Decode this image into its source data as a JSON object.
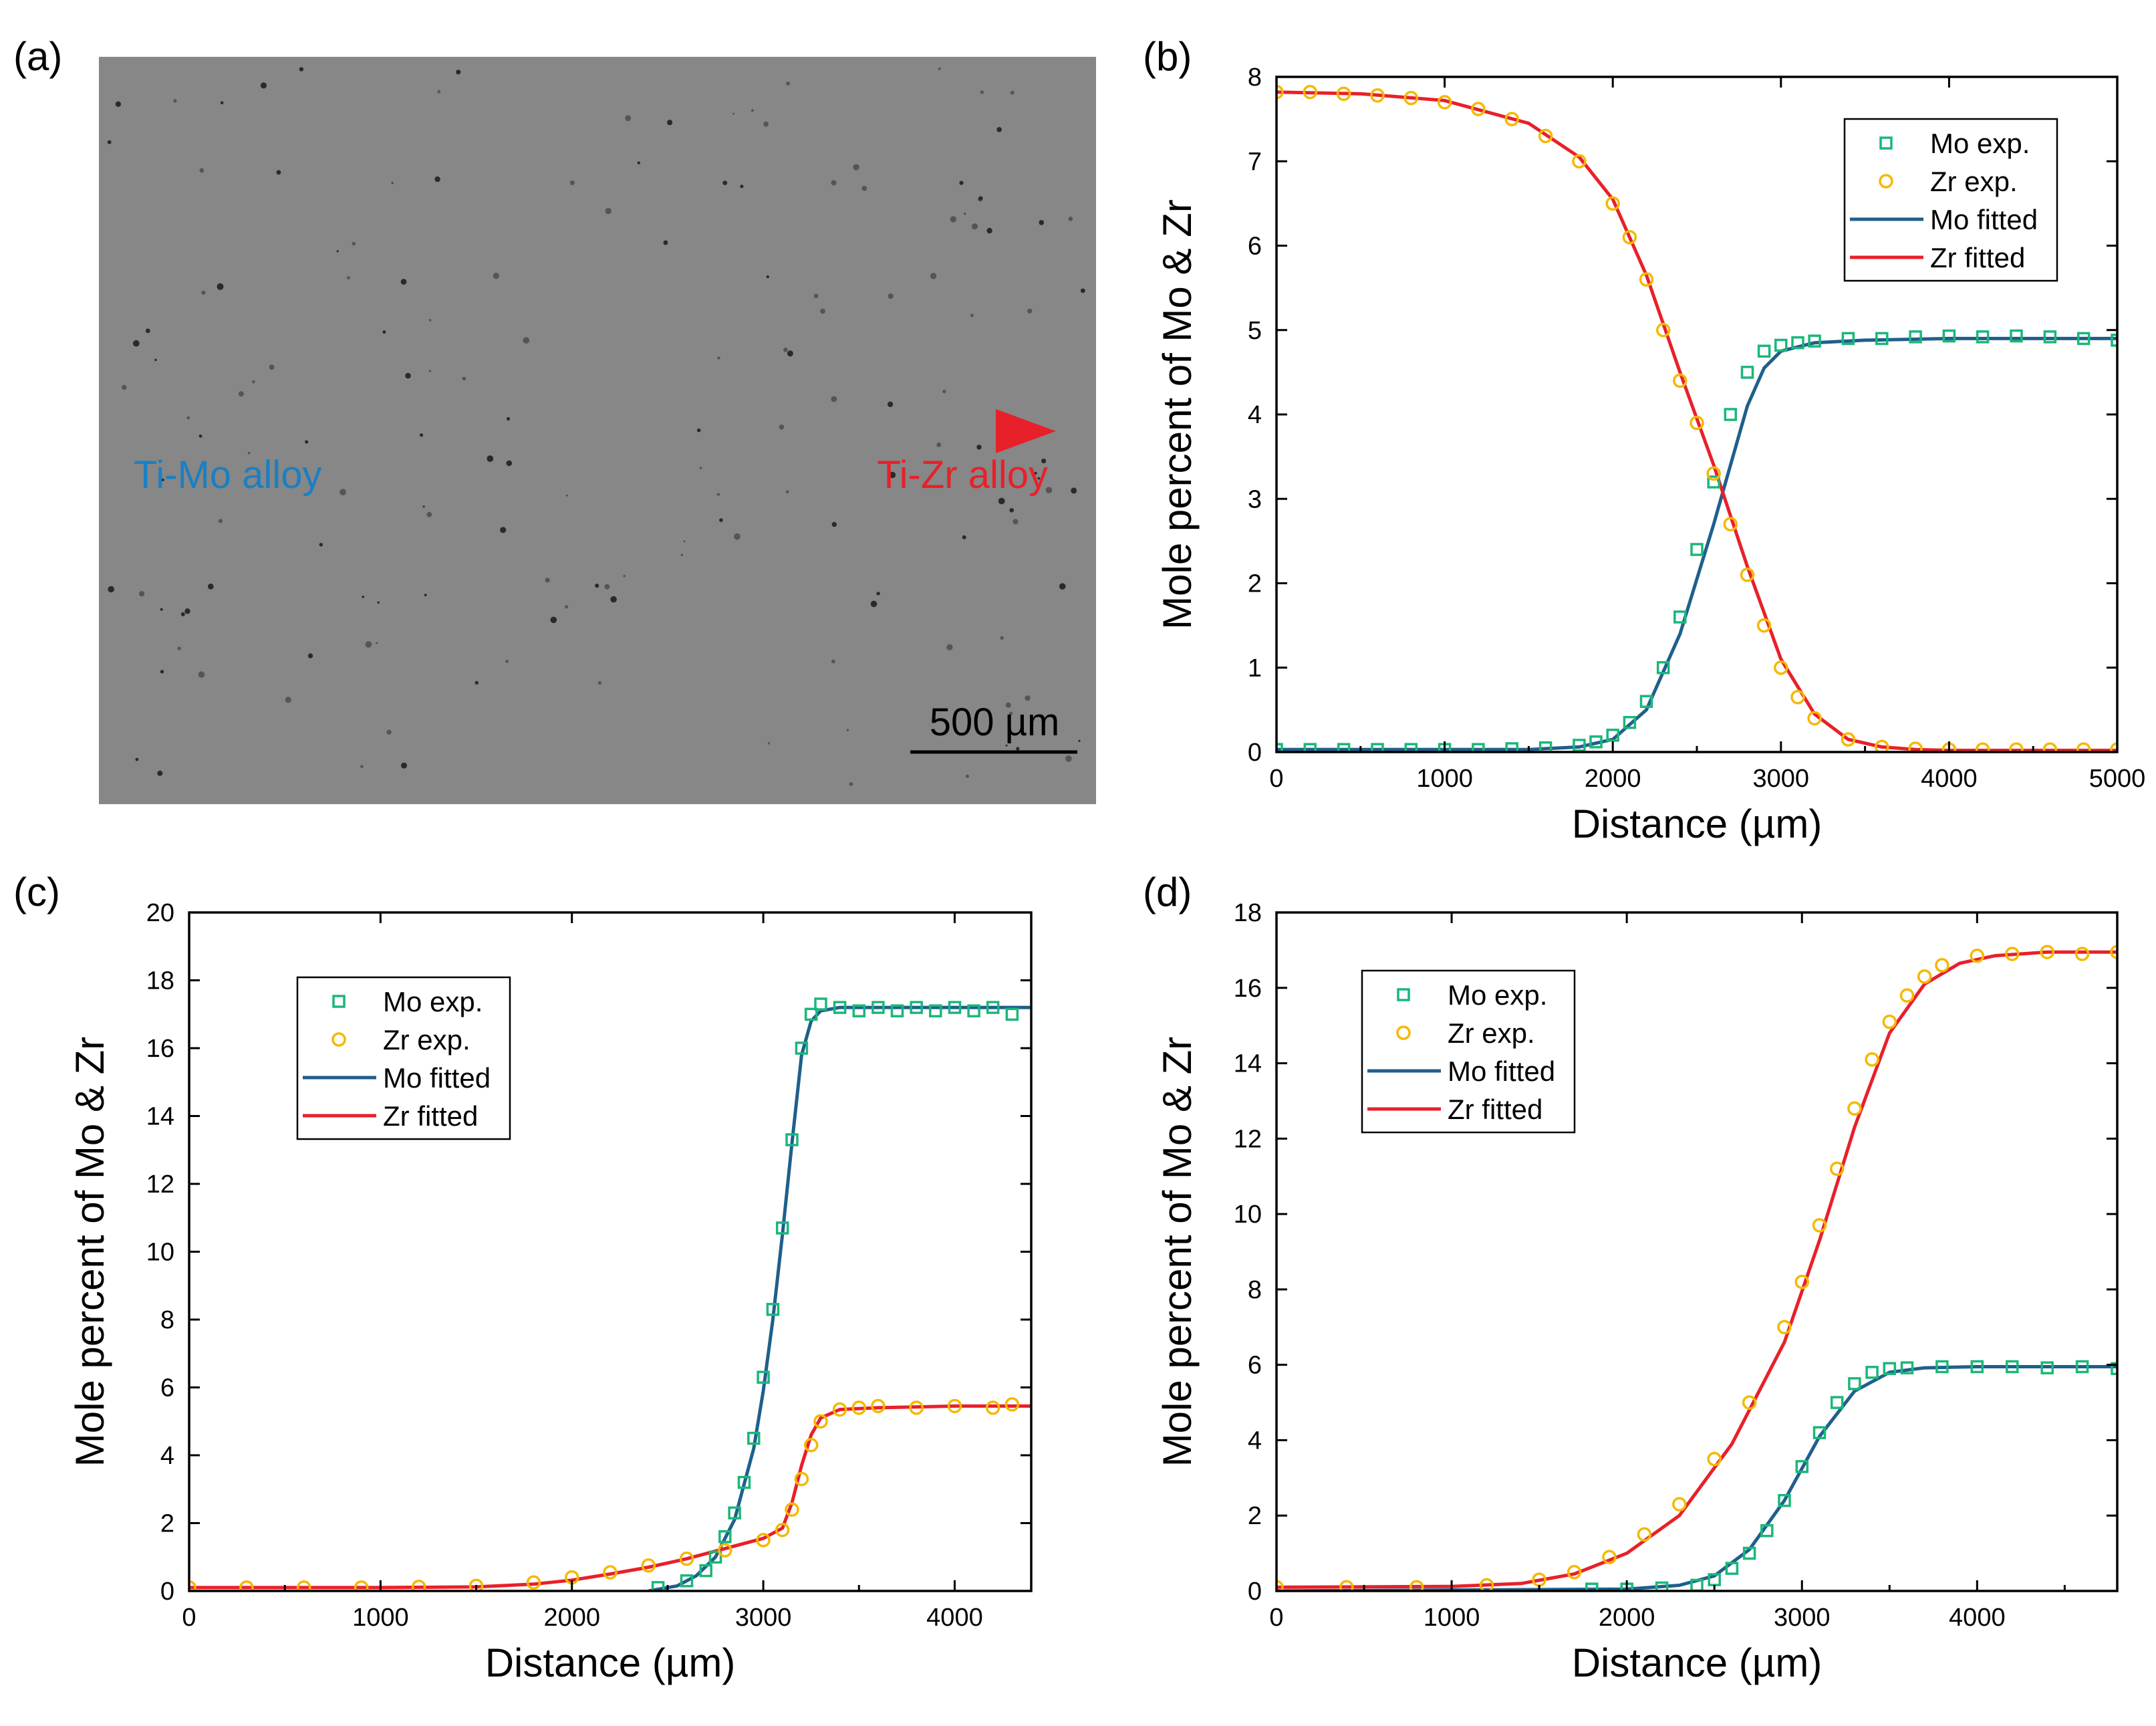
{
  "figure": {
    "panel_a": {
      "label": "(a)",
      "left_label": "Ti-Mo alloy",
      "right_label": "Ti-Zr alloy",
      "scale_bar": "500 µm",
      "colors": {
        "background": "#878787",
        "left": "#1a7fc4",
        "right": "#e8202a"
      }
    }
  },
  "chart_data": [
    {
      "id": "b",
      "label": "(b)",
      "type": "line",
      "xlabel": "Distance (µm)",
      "ylabel": "Mole percent of Mo & Zr",
      "xlim": [
        0,
        5000
      ],
      "ylim": [
        0,
        8
      ],
      "xticks": [
        0,
        1000,
        2000,
        3000,
        4000,
        5000
      ],
      "yticks": [
        0,
        1,
        2,
        3,
        4,
        5,
        6,
        7,
        8
      ],
      "legend_position": "top-right",
      "legend": [
        "Mo exp.",
        "Zr exp.",
        "Mo fitted",
        "Zr fitted"
      ],
      "series": [
        {
          "name": "Mo exp.",
          "kind": "square",
          "color": "#1ab77a",
          "x": [
            0,
            200,
            400,
            600,
            800,
            1000,
            1200,
            1400,
            1600,
            1800,
            1900,
            2000,
            2100,
            2200,
            2300,
            2400,
            2500,
            2600,
            2700,
            2800,
            2900,
            3000,
            3100,
            3200,
            3400,
            3600,
            3800,
            4000,
            4200,
            4400,
            4600,
            4800,
            5000
          ],
          "y": [
            0.03,
            0.03,
            0.03,
            0.03,
            0.03,
            0.03,
            0.03,
            0.04,
            0.05,
            0.08,
            0.12,
            0.2,
            0.35,
            0.6,
            1.0,
            1.6,
            2.4,
            3.2,
            4.0,
            4.5,
            4.75,
            4.82,
            4.85,
            4.87,
            4.9,
            4.9,
            4.92,
            4.93,
            4.92,
            4.93,
            4.92,
            4.9,
            4.88
          ]
        },
        {
          "name": "Zr exp.",
          "kind": "circle",
          "color": "#f5b800",
          "x": [
            0,
            200,
            400,
            600,
            800,
            1000,
            1200,
            1400,
            1600,
            1800,
            2000,
            2100,
            2200,
            2300,
            2400,
            2500,
            2600,
            2700,
            2800,
            2900,
            3000,
            3100,
            3200,
            3400,
            3600,
            3800,
            4000,
            4200,
            4400,
            4600,
            4800,
            5000
          ],
          "y": [
            7.82,
            7.82,
            7.8,
            7.78,
            7.75,
            7.7,
            7.62,
            7.5,
            7.3,
            7.0,
            6.5,
            6.1,
            5.6,
            5.0,
            4.4,
            3.9,
            3.3,
            2.7,
            2.1,
            1.5,
            1.0,
            0.65,
            0.4,
            0.15,
            0.06,
            0.04,
            0.03,
            0.03,
            0.03,
            0.03,
            0.03,
            0.03
          ]
        },
        {
          "name": "Mo fitted",
          "kind": "line",
          "color": "#1f5f8b",
          "x": [
            0,
            500,
            1000,
            1500,
            1800,
            2000,
            2200,
            2400,
            2600,
            2700,
            2800,
            2900,
            3000,
            3200,
            3500,
            4000,
            5000
          ],
          "y": [
            0.03,
            0.03,
            0.03,
            0.03,
            0.06,
            0.15,
            0.5,
            1.4,
            2.7,
            3.4,
            4.1,
            4.55,
            4.75,
            4.85,
            4.88,
            4.9,
            4.9
          ]
        },
        {
          "name": "Zr fitted",
          "kind": "line",
          "color": "#e8202a",
          "x": [
            0,
            500,
            1000,
            1500,
            1800,
            2000,
            2200,
            2400,
            2600,
            2700,
            2800,
            3000,
            3200,
            3400,
            3600,
            3800,
            4000,
            5000
          ],
          "y": [
            7.82,
            7.8,
            7.72,
            7.45,
            7.05,
            6.55,
            5.65,
            4.5,
            3.4,
            2.8,
            2.2,
            1.1,
            0.45,
            0.15,
            0.06,
            0.03,
            0.02,
            0.02
          ]
        }
      ]
    },
    {
      "id": "c",
      "label": "(c)",
      "type": "line",
      "xlabel": "Distance (µm)",
      "ylabel": "Mole percent of Mo & Zr",
      "xlim": [
        0,
        4400
      ],
      "ylim": [
        0,
        20
      ],
      "xticks": [
        0,
        1000,
        2000,
        3000,
        4000
      ],
      "yticks": [
        0,
        2,
        4,
        6,
        8,
        10,
        12,
        14,
        16,
        18,
        20
      ],
      "legend_position": "top-left",
      "legend": [
        "Mo exp.",
        "Zr exp.",
        "Mo fitted",
        "Zr fitted"
      ],
      "series": [
        {
          "name": "Mo exp.",
          "kind": "square",
          "color": "#1ab77a",
          "x": [
            2450,
            2600,
            2700,
            2750,
            2800,
            2850,
            2900,
            2950,
            3000,
            3050,
            3100,
            3150,
            3200,
            3250,
            3300,
            3400,
            3500,
            3600,
            3700,
            3800,
            3900,
            4000,
            4100,
            4200,
            4300
          ],
          "y": [
            0.1,
            0.3,
            0.6,
            1.0,
            1.6,
            2.3,
            3.2,
            4.5,
            6.3,
            8.3,
            10.7,
            13.3,
            16.0,
            17.0,
            17.3,
            17.2,
            17.1,
            17.2,
            17.1,
            17.2,
            17.1,
            17.2,
            17.1,
            17.2,
            17.0
          ]
        },
        {
          "name": "Zr exp.",
          "kind": "circle",
          "color": "#f5b800",
          "x": [
            0,
            300,
            600,
            900,
            1200,
            1500,
            1800,
            2000,
            2200,
            2400,
            2600,
            2800,
            3000,
            3100,
            3150,
            3200,
            3250,
            3300,
            3400,
            3500,
            3600,
            3800,
            4000,
            4200,
            4300
          ],
          "y": [
            0.1,
            0.1,
            0.1,
            0.1,
            0.12,
            0.15,
            0.25,
            0.4,
            0.55,
            0.75,
            0.95,
            1.2,
            1.5,
            1.8,
            2.4,
            3.3,
            4.3,
            5.0,
            5.35,
            5.4,
            5.45,
            5.4,
            5.45,
            5.4,
            5.5
          ]
        },
        {
          "name": "Mo fitted",
          "kind": "line",
          "color": "#1f5f8b",
          "x": [
            2400,
            2550,
            2650,
            2750,
            2850,
            2950,
            3000,
            3050,
            3100,
            3150,
            3200,
            3250,
            3300,
            3400,
            3600,
            4000,
            4400
          ],
          "y": [
            0.0,
            0.15,
            0.45,
            1.0,
            2.1,
            4.2,
            5.9,
            8.0,
            10.5,
            13.2,
            15.8,
            16.8,
            17.1,
            17.2,
            17.2,
            17.2,
            17.2
          ]
        },
        {
          "name": "Zr fitted",
          "kind": "line",
          "color": "#e8202a",
          "x": [
            0,
            1000,
            1500,
            1800,
            2000,
            2200,
            2400,
            2600,
            2800,
            3000,
            3100,
            3150,
            3200,
            3250,
            3300,
            3400,
            3600,
            4000,
            4400
          ],
          "y": [
            0.1,
            0.1,
            0.12,
            0.2,
            0.32,
            0.5,
            0.7,
            0.95,
            1.25,
            1.55,
            1.85,
            2.6,
            3.7,
            4.6,
            5.1,
            5.35,
            5.4,
            5.45,
            5.45
          ]
        }
      ]
    },
    {
      "id": "d",
      "label": "(d)",
      "type": "line",
      "xlabel": "Distance (µm)",
      "ylabel": "Mole percent of Mo & Zr",
      "xlim": [
        0,
        4800
      ],
      "ylim": [
        0,
        18
      ],
      "xticks": [
        0,
        1000,
        2000,
        3000,
        4000
      ],
      "yticks": [
        0,
        2,
        4,
        6,
        8,
        10,
        12,
        14,
        16,
        18
      ],
      "legend_position": "top-left",
      "legend": [
        "Mo exp.",
        "Zr exp.",
        "Mo fitted",
        "Zr fitted"
      ],
      "series": [
        {
          "name": "Mo exp.",
          "kind": "square",
          "color": "#1ab77a",
          "x": [
            1800,
            2000,
            2200,
            2400,
            2500,
            2600,
            2700,
            2800,
            2900,
            3000,
            3100,
            3200,
            3300,
            3400,
            3500,
            3600,
            3800,
            4000,
            4200,
            4400,
            4600,
            4800
          ],
          "y": [
            0.05,
            0.05,
            0.08,
            0.15,
            0.3,
            0.6,
            1.0,
            1.6,
            2.4,
            3.3,
            4.2,
            5.0,
            5.5,
            5.8,
            5.9,
            5.92,
            5.95,
            5.95,
            5.95,
            5.92,
            5.95,
            5.9
          ]
        },
        {
          "name": "Zr exp.",
          "kind": "circle",
          "color": "#f5b800",
          "x": [
            0,
            400,
            800,
            1200,
            1500,
            1700,
            1900,
            2100,
            2300,
            2500,
            2700,
            2900,
            3000,
            3100,
            3200,
            3300,
            3400,
            3500,
            3600,
            3700,
            3800,
            4000,
            4200,
            4400,
            4600,
            4800
          ],
          "y": [
            0.1,
            0.1,
            0.1,
            0.15,
            0.3,
            0.5,
            0.9,
            1.5,
            2.3,
            3.5,
            5.0,
            7.0,
            8.2,
            9.7,
            11.2,
            12.8,
            14.1,
            15.1,
            15.8,
            16.3,
            16.6,
            16.85,
            16.9,
            16.95,
            16.9,
            16.95
          ]
        },
        {
          "name": "Mo fitted",
          "kind": "line",
          "color": "#1f5f8b",
          "x": [
            0,
            2000,
            2300,
            2500,
            2700,
            2900,
            3100,
            3300,
            3500,
            3700,
            4000,
            4400,
            4800
          ],
          "y": [
            0.0,
            0.05,
            0.15,
            0.4,
            1.1,
            2.4,
            4.1,
            5.3,
            5.8,
            5.92,
            5.95,
            5.95,
            5.95
          ]
        },
        {
          "name": "Zr fitted",
          "kind": "line",
          "color": "#e8202a",
          "x": [
            0,
            1000,
            1400,
            1700,
            2000,
            2300,
            2600,
            2900,
            3100,
            3300,
            3500,
            3700,
            3900,
            4100,
            4400,
            4800
          ],
          "y": [
            0.1,
            0.12,
            0.2,
            0.45,
            1.0,
            2.0,
            3.9,
            6.6,
            9.3,
            12.3,
            14.8,
            16.1,
            16.65,
            16.85,
            16.95,
            16.95
          ]
        }
      ]
    }
  ]
}
